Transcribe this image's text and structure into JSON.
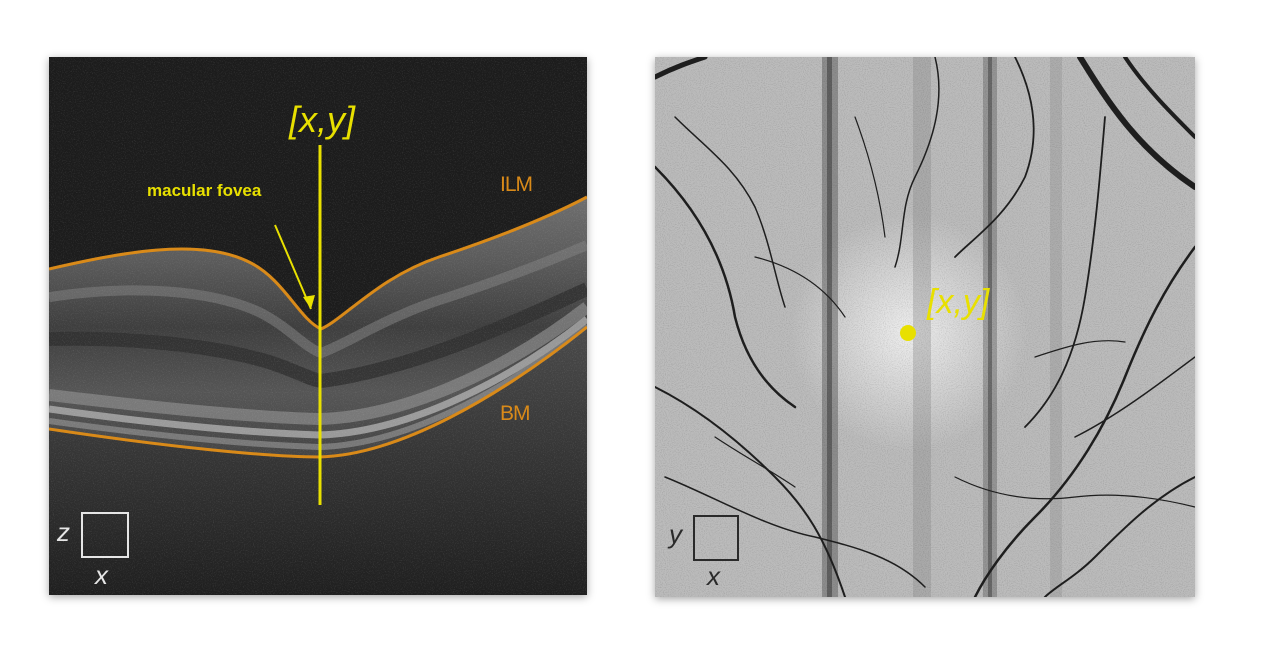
{
  "oct_scan": {
    "coordinate_label": "[x,y]",
    "fovea_label": "macular fovea",
    "ilm_label": "ILM",
    "bm_label": "BM",
    "axis_vertical": "z",
    "axis_horizontal": "x"
  },
  "fundus_image": {
    "coordinate_label": "[x,y]",
    "axis_vertical": "y",
    "axis_horizontal": "x"
  },
  "colors": {
    "annotation_yellow": "#e8e000",
    "layer_boundary_orange": "#d98a19"
  }
}
